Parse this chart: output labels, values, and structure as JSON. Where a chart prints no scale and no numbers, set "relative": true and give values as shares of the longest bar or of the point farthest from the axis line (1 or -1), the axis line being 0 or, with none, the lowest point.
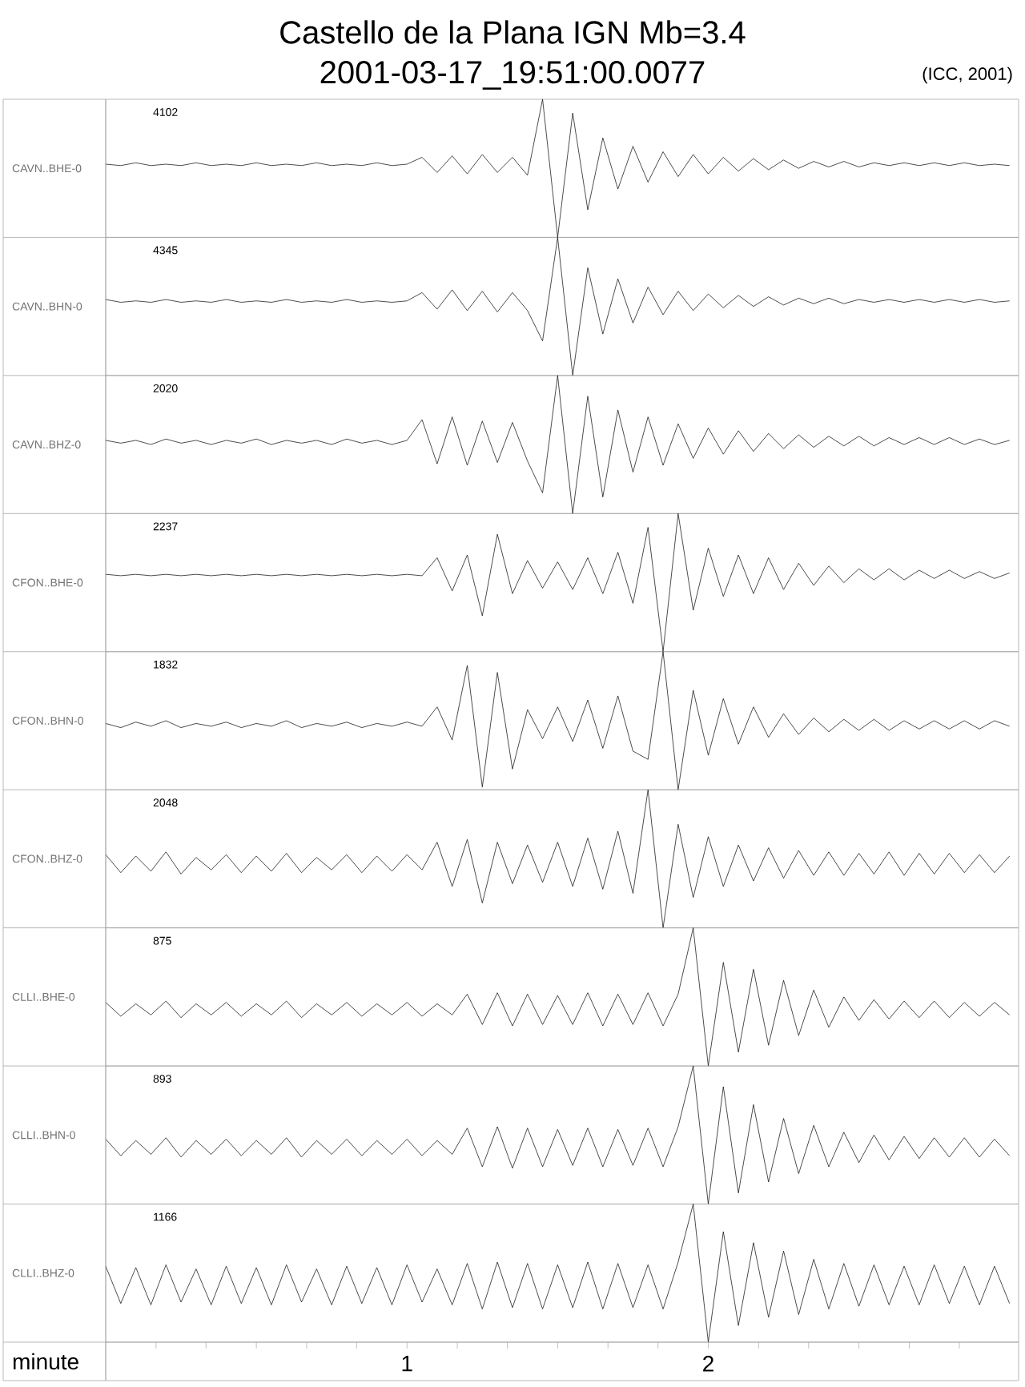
{
  "chart_data": [
    {
      "type": "line",
      "relative": true,
      "title": "Castello de la Plana IGN Mb=3.4",
      "subtitle": "2001-03-17_19:51:00.0077",
      "ylabel": "CAVN..BHE-0",
      "annotations": [
        "4102",
        "(ICC, 2001)"
      ],
      "tick_labels": false,
      "xlim": [
        0,
        3.03
      ],
      "x": [
        0,
        0.05,
        0.1,
        0.15,
        0.2,
        0.25,
        0.3,
        0.35,
        0.4,
        0.45,
        0.5,
        0.55,
        0.6,
        0.65,
        0.7,
        0.75,
        0.8,
        0.85,
        0.9,
        0.95,
        1,
        1.05,
        1.1,
        1.15,
        1.2,
        1.25,
        1.3,
        1.35,
        1.4,
        1.45,
        1.5,
        1.55,
        1.6,
        1.65,
        1.7,
        1.75,
        1.8,
        1.85,
        1.9,
        1.95,
        2,
        2.05,
        2.1,
        2.15,
        2.2,
        2.25,
        2.3,
        2.35,
        2.4,
        2.45,
        2.5,
        2.55,
        2.6,
        2.65,
        2.7,
        2.75,
        2.8,
        2.85,
        2.9,
        2.95,
        3
      ],
      "series": [
        {
          "color": "#000000",
          "values": [
            0.53,
            0.52,
            0.54,
            0.52,
            0.53,
            0.52,
            0.54,
            0.52,
            0.53,
            0.52,
            0.54,
            0.52,
            0.53,
            0.52,
            0.54,
            0.52,
            0.53,
            0.52,
            0.54,
            0.52,
            0.53,
            0.58,
            0.47,
            0.59,
            0.46,
            0.6,
            0.47,
            0.58,
            0.45,
            1.0,
            0.0,
            0.9,
            0.2,
            0.72,
            0.35,
            0.66,
            0.4,
            0.62,
            0.44,
            0.6,
            0.46,
            0.58,
            0.48,
            0.57,
            0.49,
            0.56,
            0.5,
            0.55,
            0.51,
            0.55,
            0.51,
            0.54,
            0.52,
            0.54,
            0.52,
            0.54,
            0.52,
            0.54,
            0.52,
            0.53,
            0.52
          ]
        }
      ]
    },
    {
      "type": "line",
      "relative": true,
      "ylabel": "CAVN..BHN-0",
      "annotations": [
        "4345"
      ],
      "tick_labels": false,
      "xlim": [
        0,
        3.03
      ],
      "x": [
        0,
        0.05,
        0.1,
        0.15,
        0.2,
        0.25,
        0.3,
        0.35,
        0.4,
        0.45,
        0.5,
        0.55,
        0.6,
        0.65,
        0.7,
        0.75,
        0.8,
        0.85,
        0.9,
        0.95,
        1,
        1.05,
        1.1,
        1.15,
        1.2,
        1.25,
        1.3,
        1.35,
        1.4,
        1.45,
        1.5,
        1.55,
        1.6,
        1.65,
        1.7,
        1.75,
        1.8,
        1.85,
        1.9,
        1.95,
        2,
        2.05,
        2.1,
        2.15,
        2.2,
        2.25,
        2.3,
        2.35,
        2.4,
        2.45,
        2.5,
        2.55,
        2.6,
        2.65,
        2.7,
        2.75,
        2.8,
        2.85,
        2.9,
        2.95,
        3
      ],
      "series": [
        {
          "color": "#000000",
          "values": [
            0.55,
            0.53,
            0.54,
            0.53,
            0.55,
            0.53,
            0.54,
            0.53,
            0.55,
            0.53,
            0.54,
            0.53,
            0.55,
            0.53,
            0.54,
            0.53,
            0.55,
            0.53,
            0.54,
            0.53,
            0.54,
            0.6,
            0.48,
            0.62,
            0.47,
            0.61,
            0.46,
            0.6,
            0.47,
            0.25,
            1.0,
            0.0,
            0.78,
            0.3,
            0.7,
            0.38,
            0.64,
            0.44,
            0.61,
            0.47,
            0.59,
            0.49,
            0.58,
            0.5,
            0.57,
            0.51,
            0.56,
            0.52,
            0.56,
            0.52,
            0.55,
            0.53,
            0.55,
            0.53,
            0.55,
            0.53,
            0.55,
            0.53,
            0.55,
            0.53,
            0.54
          ]
        }
      ]
    },
    {
      "type": "line",
      "relative": true,
      "ylabel": "CAVN..BHZ-0",
      "annotations": [
        "2020"
      ],
      "tick_labels": false,
      "xlim": [
        0,
        3.03
      ],
      "x": [
        0,
        0.05,
        0.1,
        0.15,
        0.2,
        0.25,
        0.3,
        0.35,
        0.4,
        0.45,
        0.5,
        0.55,
        0.6,
        0.65,
        0.7,
        0.75,
        0.8,
        0.85,
        0.9,
        0.95,
        1,
        1.05,
        1.1,
        1.15,
        1.2,
        1.25,
        1.3,
        1.35,
        1.4,
        1.45,
        1.5,
        1.55,
        1.6,
        1.65,
        1.7,
        1.75,
        1.8,
        1.85,
        1.9,
        1.95,
        2,
        2.05,
        2.1,
        2.15,
        2.2,
        2.25,
        2.3,
        2.35,
        2.4,
        2.45,
        2.5,
        2.55,
        2.6,
        2.65,
        2.7,
        2.75,
        2.8,
        2.85,
        2.9,
        2.95,
        3
      ],
      "series": [
        {
          "color": "#000000",
          "values": [
            0.53,
            0.51,
            0.53,
            0.5,
            0.54,
            0.51,
            0.53,
            0.5,
            0.53,
            0.51,
            0.54,
            0.5,
            0.53,
            0.51,
            0.53,
            0.5,
            0.54,
            0.51,
            0.53,
            0.5,
            0.53,
            0.68,
            0.36,
            0.7,
            0.35,
            0.67,
            0.37,
            0.66,
            0.38,
            0.15,
            1.0,
            0.0,
            0.85,
            0.12,
            0.75,
            0.3,
            0.7,
            0.35,
            0.65,
            0.4,
            0.62,
            0.43,
            0.6,
            0.45,
            0.58,
            0.47,
            0.57,
            0.48,
            0.56,
            0.49,
            0.56,
            0.49,
            0.55,
            0.5,
            0.55,
            0.5,
            0.55,
            0.5,
            0.54,
            0.5,
            0.53
          ]
        }
      ]
    },
    {
      "type": "line",
      "relative": true,
      "ylabel": "CFON..BHE-0",
      "annotations": [
        "2237"
      ],
      "tick_labels": false,
      "xlim": [
        0,
        3.03
      ],
      "x": [
        0,
        0.05,
        0.1,
        0.15,
        0.2,
        0.25,
        0.3,
        0.35,
        0.4,
        0.45,
        0.5,
        0.55,
        0.6,
        0.65,
        0.7,
        0.75,
        0.8,
        0.85,
        0.9,
        0.95,
        1,
        1.05,
        1.1,
        1.15,
        1.2,
        1.25,
        1.3,
        1.35,
        1.4,
        1.45,
        1.5,
        1.55,
        1.6,
        1.65,
        1.7,
        1.75,
        1.8,
        1.85,
        1.9,
        1.95,
        2,
        2.05,
        2.1,
        2.15,
        2.2,
        2.25,
        2.3,
        2.35,
        2.4,
        2.45,
        2.5,
        2.55,
        2.6,
        2.65,
        2.7,
        2.75,
        2.8,
        2.85,
        2.9,
        2.95,
        3
      ],
      "series": [
        {
          "color": "#000000",
          "values": [
            0.56,
            0.55,
            0.56,
            0.55,
            0.56,
            0.55,
            0.56,
            0.55,
            0.56,
            0.55,
            0.56,
            0.55,
            0.56,
            0.55,
            0.56,
            0.55,
            0.56,
            0.55,
            0.56,
            0.55,
            0.56,
            0.55,
            0.68,
            0.44,
            0.7,
            0.26,
            0.85,
            0.42,
            0.66,
            0.46,
            0.65,
            0.45,
            0.68,
            0.42,
            0.72,
            0.35,
            0.9,
            0.0,
            1.0,
            0.3,
            0.75,
            0.4,
            0.7,
            0.42,
            0.68,
            0.45,
            0.64,
            0.48,
            0.62,
            0.5,
            0.6,
            0.52,
            0.6,
            0.52,
            0.59,
            0.53,
            0.59,
            0.53,
            0.58,
            0.53,
            0.57
          ]
        }
      ]
    },
    {
      "type": "line",
      "relative": true,
      "ylabel": "CFON..BHN-0",
      "annotations": [
        "1832"
      ],
      "tick_labels": false,
      "xlim": [
        0,
        3.03
      ],
      "x": [
        0,
        0.05,
        0.1,
        0.15,
        0.2,
        0.25,
        0.3,
        0.35,
        0.4,
        0.45,
        0.5,
        0.55,
        0.6,
        0.65,
        0.7,
        0.75,
        0.8,
        0.85,
        0.9,
        0.95,
        1,
        1.05,
        1.1,
        1.15,
        1.2,
        1.25,
        1.3,
        1.35,
        1.4,
        1.45,
        1.5,
        1.55,
        1.6,
        1.65,
        1.7,
        1.75,
        1.8,
        1.85,
        1.9,
        1.95,
        2,
        2.05,
        2.1,
        2.15,
        2.2,
        2.25,
        2.3,
        2.35,
        2.4,
        2.45,
        2.5,
        2.55,
        2.6,
        2.65,
        2.7,
        2.75,
        2.8,
        2.85,
        2.9,
        2.95,
        3
      ],
      "series": [
        {
          "color": "#000000",
          "values": [
            0.48,
            0.45,
            0.49,
            0.46,
            0.5,
            0.45,
            0.48,
            0.46,
            0.49,
            0.45,
            0.48,
            0.46,
            0.5,
            0.45,
            0.48,
            0.46,
            0.49,
            0.45,
            0.48,
            0.46,
            0.49,
            0.46,
            0.6,
            0.36,
            0.9,
            0.02,
            0.85,
            0.15,
            0.58,
            0.37,
            0.6,
            0.35,
            0.65,
            0.3,
            0.68,
            0.28,
            0.22,
            1.0,
            0.0,
            0.72,
            0.25,
            0.66,
            0.33,
            0.6,
            0.38,
            0.55,
            0.4,
            0.52,
            0.42,
            0.51,
            0.43,
            0.51,
            0.43,
            0.5,
            0.44,
            0.5,
            0.44,
            0.5,
            0.44,
            0.5,
            0.46
          ]
        }
      ]
    },
    {
      "type": "line",
      "relative": true,
      "ylabel": "CFON..BHZ-0",
      "annotations": [
        "2048"
      ],
      "tick_labels": false,
      "xlim": [
        0,
        3.03
      ],
      "x": [
        0,
        0.05,
        0.1,
        0.15,
        0.2,
        0.25,
        0.3,
        0.35,
        0.4,
        0.45,
        0.5,
        0.55,
        0.6,
        0.65,
        0.7,
        0.75,
        0.8,
        0.85,
        0.9,
        0.95,
        1,
        1.05,
        1.1,
        1.15,
        1.2,
        1.25,
        1.3,
        1.35,
        1.4,
        1.45,
        1.5,
        1.55,
        1.6,
        1.65,
        1.7,
        1.75,
        1.8,
        1.85,
        1.9,
        1.95,
        2,
        2.05,
        2.1,
        2.15,
        2.2,
        2.25,
        2.3,
        2.35,
        2.4,
        2.45,
        2.5,
        2.55,
        2.6,
        2.65,
        2.7,
        2.75,
        2.8,
        2.85,
        2.9,
        2.95,
        3
      ],
      "series": [
        {
          "color": "#000000",
          "values": [
            0.53,
            0.4,
            0.52,
            0.41,
            0.55,
            0.39,
            0.51,
            0.42,
            0.53,
            0.4,
            0.52,
            0.41,
            0.54,
            0.4,
            0.51,
            0.42,
            0.53,
            0.4,
            0.52,
            0.41,
            0.53,
            0.42,
            0.62,
            0.3,
            0.64,
            0.18,
            0.62,
            0.32,
            0.6,
            0.33,
            0.62,
            0.3,
            0.65,
            0.28,
            0.7,
            0.25,
            1.0,
            0.0,
            0.75,
            0.22,
            0.66,
            0.3,
            0.6,
            0.34,
            0.58,
            0.36,
            0.56,
            0.38,
            0.55,
            0.38,
            0.54,
            0.39,
            0.55,
            0.38,
            0.54,
            0.39,
            0.54,
            0.4,
            0.53,
            0.4,
            0.52
          ]
        }
      ]
    },
    {
      "type": "line",
      "relative": true,
      "ylabel": "CLLI..BHE-0",
      "annotations": [
        "875"
      ],
      "tick_labels": false,
      "xlim": [
        0,
        3.03
      ],
      "x": [
        0,
        0.05,
        0.1,
        0.15,
        0.2,
        0.25,
        0.3,
        0.35,
        0.4,
        0.45,
        0.5,
        0.55,
        0.6,
        0.65,
        0.7,
        0.75,
        0.8,
        0.85,
        0.9,
        0.95,
        1,
        1.05,
        1.1,
        1.15,
        1.2,
        1.25,
        1.3,
        1.35,
        1.4,
        1.45,
        1.5,
        1.55,
        1.6,
        1.65,
        1.7,
        1.75,
        1.8,
        1.85,
        1.9,
        1.95,
        2,
        2.05,
        2.1,
        2.15,
        2.2,
        2.25,
        2.3,
        2.35,
        2.4,
        2.45,
        2.5,
        2.55,
        2.6,
        2.65,
        2.7,
        2.75,
        2.8,
        2.85,
        2.9,
        2.95,
        3
      ],
      "series": [
        {
          "color": "#000000",
          "values": [
            0.46,
            0.36,
            0.45,
            0.37,
            0.47,
            0.35,
            0.45,
            0.37,
            0.46,
            0.36,
            0.45,
            0.37,
            0.47,
            0.35,
            0.45,
            0.37,
            0.46,
            0.36,
            0.45,
            0.37,
            0.46,
            0.36,
            0.45,
            0.37,
            0.52,
            0.3,
            0.53,
            0.29,
            0.52,
            0.3,
            0.51,
            0.3,
            0.53,
            0.29,
            0.52,
            0.3,
            0.53,
            0.29,
            0.52,
            1.0,
            0.0,
            0.75,
            0.1,
            0.7,
            0.15,
            0.62,
            0.22,
            0.55,
            0.28,
            0.5,
            0.33,
            0.48,
            0.34,
            0.47,
            0.35,
            0.47,
            0.35,
            0.46,
            0.36,
            0.46,
            0.37
          ]
        }
      ]
    },
    {
      "type": "line",
      "relative": true,
      "ylabel": "CLLI..BHN-0",
      "annotations": [
        "893"
      ],
      "tick_labels": false,
      "xlim": [
        0,
        3.03
      ],
      "x": [
        0,
        0.05,
        0.1,
        0.15,
        0.2,
        0.25,
        0.3,
        0.35,
        0.4,
        0.45,
        0.5,
        0.55,
        0.6,
        0.65,
        0.7,
        0.75,
        0.8,
        0.85,
        0.9,
        0.95,
        1,
        1.05,
        1.1,
        1.15,
        1.2,
        1.25,
        1.3,
        1.35,
        1.4,
        1.45,
        1.5,
        1.55,
        1.6,
        1.65,
        1.7,
        1.75,
        1.8,
        1.85,
        1.9,
        1.95,
        2,
        2.05,
        2.1,
        2.15,
        2.2,
        2.25,
        2.3,
        2.35,
        2.4,
        2.45,
        2.5,
        2.55,
        2.6,
        2.65,
        2.7,
        2.75,
        2.8,
        2.85,
        2.9,
        2.95,
        3
      ],
      "series": [
        {
          "color": "#000000",
          "values": [
            0.47,
            0.35,
            0.46,
            0.36,
            0.48,
            0.34,
            0.46,
            0.36,
            0.47,
            0.35,
            0.46,
            0.36,
            0.48,
            0.34,
            0.46,
            0.36,
            0.47,
            0.35,
            0.46,
            0.36,
            0.47,
            0.35,
            0.46,
            0.36,
            0.55,
            0.27,
            0.56,
            0.26,
            0.55,
            0.27,
            0.54,
            0.28,
            0.55,
            0.27,
            0.54,
            0.28,
            0.55,
            0.27,
            0.56,
            1.0,
            0.0,
            0.85,
            0.08,
            0.72,
            0.16,
            0.62,
            0.22,
            0.57,
            0.27,
            0.52,
            0.3,
            0.5,
            0.32,
            0.49,
            0.33,
            0.48,
            0.34,
            0.48,
            0.34,
            0.47,
            0.35
          ]
        }
      ]
    },
    {
      "type": "line",
      "relative": true,
      "ylabel": "CLLI..BHZ-0",
      "annotations": [
        "1166"
      ],
      "xlabel": "minute",
      "tick_labels": "x",
      "xlim": [
        0,
        3.03
      ],
      "xticks": [
        {
          "value": 0.167,
          "label": null
        },
        {
          "value": 0.333,
          "label": null
        },
        {
          "value": 0.5,
          "label": null
        },
        {
          "value": 0.667,
          "label": null
        },
        {
          "value": 0.833,
          "label": null
        },
        1,
        {
          "value": 1.167,
          "label": null
        },
        {
          "value": 1.333,
          "label": null
        },
        {
          "value": 1.5,
          "label": null
        },
        {
          "value": 1.667,
          "label": null
        },
        {
          "value": 1.833,
          "label": null
        },
        2,
        {
          "value": 2.167,
          "label": null
        },
        {
          "value": 2.333,
          "label": null
        },
        {
          "value": 2.5,
          "label": null
        },
        {
          "value": 2.667,
          "label": null
        },
        {
          "value": 2.833,
          "label": null
        }
      ],
      "x": [
        0,
        0.05,
        0.1,
        0.15,
        0.2,
        0.25,
        0.3,
        0.35,
        0.4,
        0.45,
        0.5,
        0.55,
        0.6,
        0.65,
        0.7,
        0.75,
        0.8,
        0.85,
        0.9,
        0.95,
        1,
        1.05,
        1.1,
        1.15,
        1.2,
        1.25,
        1.3,
        1.35,
        1.4,
        1.45,
        1.5,
        1.55,
        1.6,
        1.65,
        1.7,
        1.75,
        1.8,
        1.85,
        1.9,
        1.95,
        2,
        2.05,
        2.1,
        2.15,
        2.2,
        2.25,
        2.3,
        2.35,
        2.4,
        2.45,
        2.5,
        2.55,
        2.6,
        2.65,
        2.7,
        2.75,
        2.8,
        2.85,
        2.9,
        2.95,
        3
      ],
      "series": [
        {
          "color": "#000000",
          "values": [
            0.55,
            0.28,
            0.54,
            0.27,
            0.56,
            0.29,
            0.53,
            0.27,
            0.55,
            0.28,
            0.54,
            0.27,
            0.56,
            0.29,
            0.53,
            0.27,
            0.55,
            0.28,
            0.54,
            0.27,
            0.56,
            0.29,
            0.53,
            0.27,
            0.57,
            0.24,
            0.58,
            0.25,
            0.57,
            0.24,
            0.56,
            0.25,
            0.58,
            0.24,
            0.57,
            0.25,
            0.56,
            0.24,
            0.58,
            1.0,
            0.0,
            0.8,
            0.12,
            0.72,
            0.18,
            0.66,
            0.2,
            0.6,
            0.24,
            0.57,
            0.26,
            0.56,
            0.27,
            0.55,
            0.27,
            0.56,
            0.28,
            0.55,
            0.27,
            0.55,
            0.28
          ]
        }
      ]
    }
  ]
}
